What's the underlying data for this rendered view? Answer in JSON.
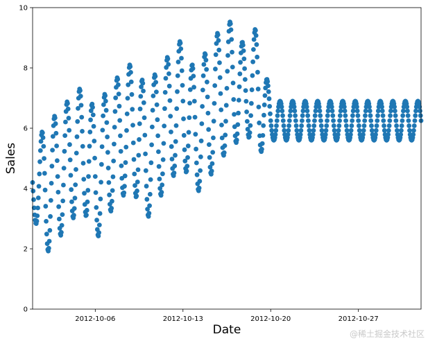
{
  "chart_data": {
    "type": "scatter",
    "title": "",
    "xlabel": "Date",
    "ylabel": "Sales",
    "xlim": [
      "2012-10-01T00:00",
      "2012-11-01T00:00"
    ],
    "ylim": [
      0,
      10
    ],
    "yticks": [
      0,
      2,
      4,
      6,
      8,
      10
    ],
    "xticks": [
      "2012-10-06",
      "2012-10-13",
      "2012-10-20",
      "2012-10-27"
    ],
    "grid": false,
    "legend": "none",
    "marker_color": "#1f77b4",
    "sampling_interval_hours": 1,
    "daily_min_max": [
      {
        "date": "2012-10-01",
        "min": 3.2,
        "max": 5.2
      },
      {
        "date": "2012-10-02",
        "min": 1.8,
        "max": 6.1
      },
      {
        "date": "2012-10-03",
        "min": 2.3,
        "max": 6.5
      },
      {
        "date": "2012-10-04",
        "min": 2.9,
        "max": 7.0
      },
      {
        "date": "2012-10-05",
        "min": 3.4,
        "max": 7.4
      },
      {
        "date": "2012-10-06",
        "min": 2.2,
        "max": 6.6
      },
      {
        "date": "2012-10-07",
        "min": 3.1,
        "max": 7.3
      },
      {
        "date": "2012-10-08",
        "min": 3.7,
        "max": 7.8
      },
      {
        "date": "2012-10-09",
        "min": 4.0,
        "max": 8.2
      },
      {
        "date": "2012-10-10",
        "min": 2.9,
        "max": 7.4
      },
      {
        "date": "2012-10-11",
        "min": 3.6,
        "max": 7.9
      },
      {
        "date": "2012-10-12",
        "min": 4.3,
        "max": 8.5
      },
      {
        "date": "2012-10-13",
        "min": 4.8,
        "max": 9.0
      },
      {
        "date": "2012-10-14",
        "min": 3.8,
        "max": 7.8
      },
      {
        "date": "2012-10-15",
        "min": 4.3,
        "max": 8.7
      },
      {
        "date": "2012-10-16",
        "min": 5.0,
        "max": 9.3
      },
      {
        "date": "2012-10-17",
        "min": 5.4,
        "max": 9.6
      },
      {
        "date": "2012-10-18",
        "min": 5.9,
        "max": 8.6
      },
      {
        "date": "2012-10-19",
        "min": 5.1,
        "max": 9.5
      },
      {
        "date": "2012-10-20",
        "min": 5.6,
        "max": 6.9
      }
    ]
  },
  "watermark": {
    "text": "@稀土掘金技术社区"
  }
}
